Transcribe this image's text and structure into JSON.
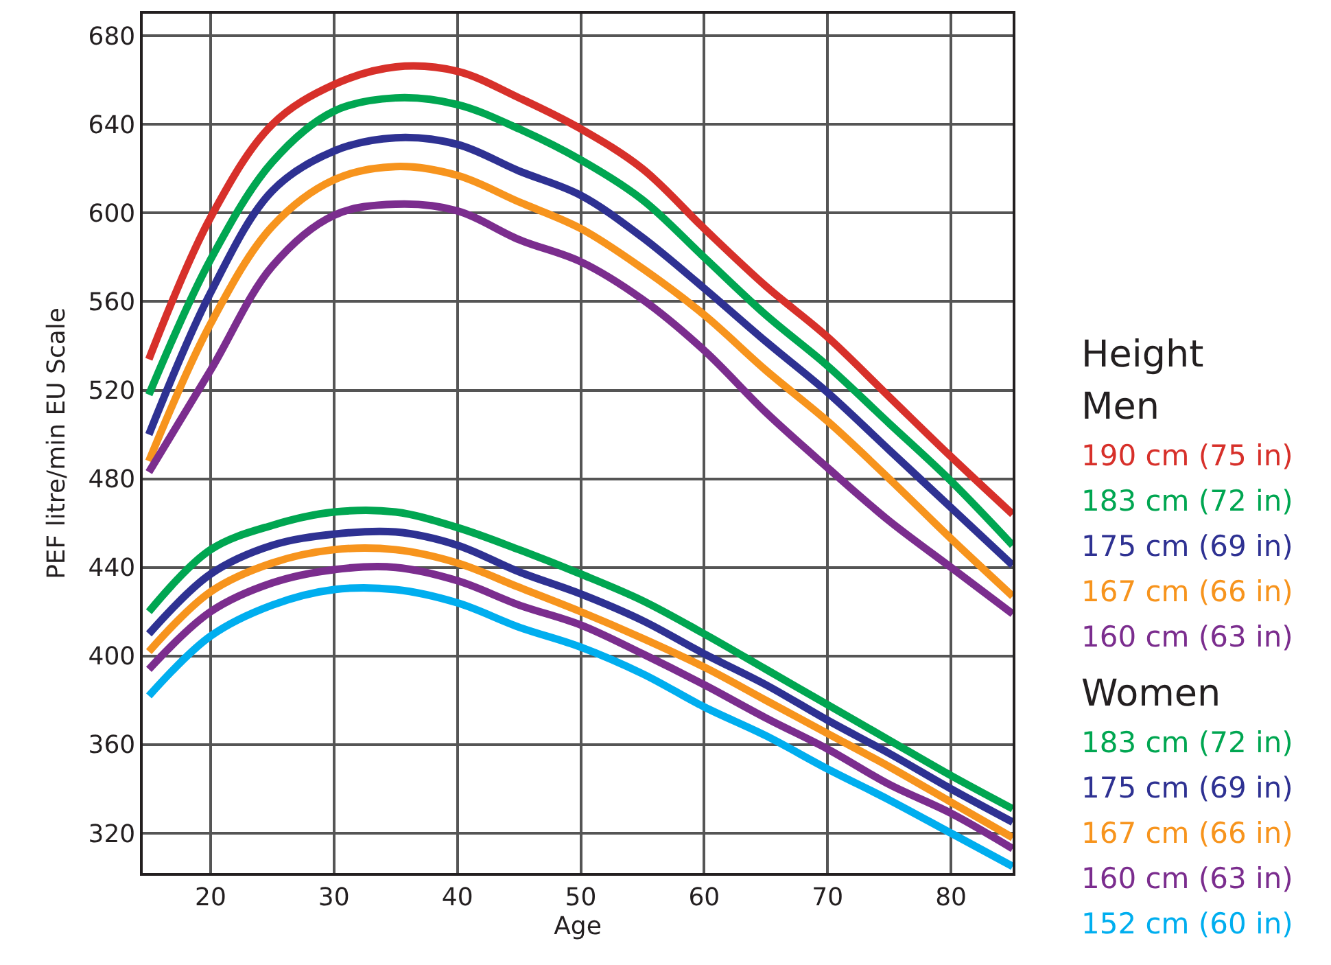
{
  "chart_data": {
    "type": "line",
    "xlabel": "Age",
    "ylabel": "PEF litre/min EU Scale",
    "legend_title": "Height",
    "legend": "right",
    "grid": true,
    "line_style": "solid",
    "marker": "none",
    "annotations": [
      "Men",
      "Women"
    ],
    "x": [
      15,
      20,
      25,
      30,
      35,
      40,
      45,
      50,
      55,
      60,
      65,
      70,
      75,
      80,
      85
    ],
    "xlim": [
      14.5,
      85
    ],
    "xticks": [
      20,
      30,
      40,
      50,
      60,
      70,
      80
    ],
    "ylim": [
      302,
      690
    ],
    "yticks": [
      320,
      360,
      400,
      440,
      480,
      520,
      560,
      600,
      640,
      680
    ],
    "series": [
      {
        "name": "190 cm (75 in)",
        "color": "#d7302a",
        "values": [
          534,
          598,
          640,
          658,
          666,
          664,
          652,
          638,
          620,
          593,
          567,
          544,
          517,
          490,
          464
        ]
      },
      {
        "name": "183 cm (72 in)",
        "color": "#00a651",
        "values": [
          518,
          579,
          623,
          646,
          652,
          649,
          638,
          624,
          606,
          580,
          554,
          531,
          505,
          479,
          450
        ]
      },
      {
        "name": "175 cm (69 in)",
        "color": "#2e3192",
        "values": [
          500,
          564,
          610,
          628,
          634,
          631,
          619,
          608,
          589,
          566,
          542,
          519,
          493,
          467,
          441
        ]
      },
      {
        "name": "167 cm (66 in)",
        "color": "#f7941d",
        "values": [
          488,
          550,
          594,
          615,
          621,
          617,
          605,
          593,
          575,
          554,
          529,
          506,
          480,
          453,
          427
        ]
      },
      {
        "name": "160 cm (63 in)",
        "color": "#7b2d8e",
        "values": [
          483,
          529,
          576,
          599,
          604,
          601,
          588,
          578,
          561,
          538,
          510,
          485,
          461,
          440,
          419
        ]
      },
      {
        "name": "183 cm (72 in)",
        "color": "#00a651",
        "values": [
          420,
          448,
          459,
          465,
          465,
          458,
          448,
          437,
          425,
          410,
          394,
          378,
          362,
          346,
          331
        ]
      },
      {
        "name": "175 cm (69 in)",
        "color": "#2e3192",
        "values": [
          410,
          437,
          450,
          455,
          456,
          450,
          438,
          428,
          416,
          401,
          387,
          371,
          356,
          340,
          325
        ]
      },
      {
        "name": "167 cm (66 in)",
        "color": "#f7941d",
        "values": [
          402,
          429,
          442,
          448,
          448,
          442,
          431,
          420,
          408,
          395,
          380,
          365,
          350,
          334,
          318
        ]
      },
      {
        "name": "160 cm (63 in)",
        "color": "#7b2d8e",
        "values": [
          394,
          420,
          433,
          439,
          440,
          434,
          423,
          414,
          401,
          387,
          372,
          358,
          342,
          329,
          313
        ]
      },
      {
        "name": "152 cm (60 in)",
        "color": "#00aeef",
        "values": [
          382,
          409,
          423,
          430,
          430,
          424,
          413,
          404,
          392,
          377,
          364,
          349,
          335,
          320,
          305
        ]
      }
    ]
  }
}
